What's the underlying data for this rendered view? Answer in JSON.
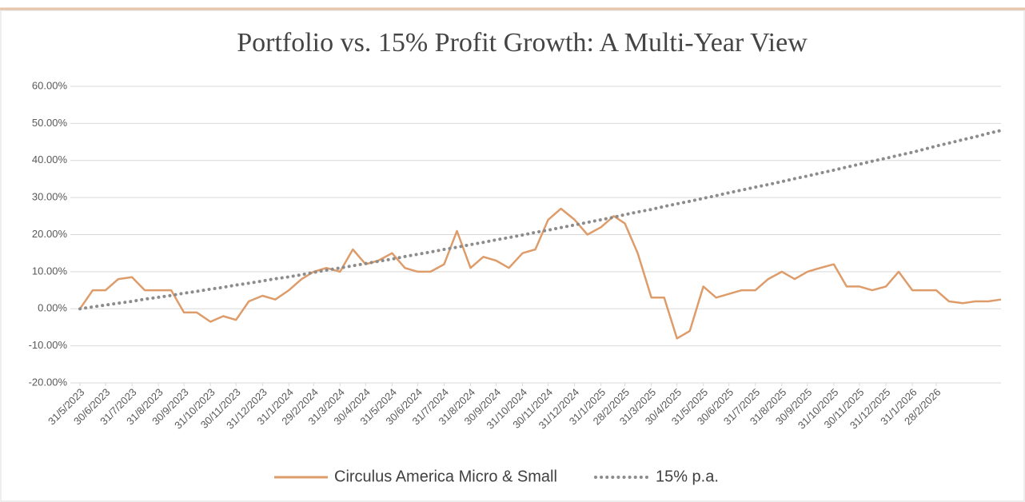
{
  "chart_data": {
    "type": "line",
    "title": "Portfolio vs. 15% Profit Growth: A Multi-Year View",
    "x": [
      "31/5/2023",
      "15/6/2023",
      "30/6/2023",
      "15/7/2023",
      "31/7/2023",
      "15/8/2023",
      "31/8/2023",
      "15/9/2023",
      "30/9/2023",
      "15/10/2023",
      "31/10/2023",
      "15/11/2023",
      "30/11/2023",
      "15/12/2023",
      "31/12/2023",
      "15/1/2024",
      "31/1/2024",
      "15/2/2024",
      "29/2/2024",
      "15/3/2024",
      "31/3/2024",
      "15/4/2024",
      "30/4/2024",
      "15/5/2024",
      "31/5/2024",
      "15/6/2024",
      "30/6/2024",
      "15/7/2024",
      "31/7/2024",
      "15/8/2024",
      "31/8/2024",
      "15/9/2024",
      "30/9/2024",
      "15/10/2024",
      "31/10/2024",
      "15/11/2024",
      "30/11/2024",
      "15/12/2024",
      "31/12/2024",
      "15/1/2025",
      "31/1/2025",
      "15/2/2025",
      "28/2/2025",
      "15/3/2025",
      "31/3/2025",
      "15/4/2025",
      "30/4/2025",
      "15/5/2025",
      "31/5/2025",
      "15/6/2025",
      "30/6/2025",
      "15/7/2025",
      "31/7/2025",
      "15/8/2025",
      "31/8/2025",
      "15/9/2025",
      "30/9/2025",
      "15/10/2025",
      "31/10/2025",
      "15/11/2025",
      "30/11/2025",
      "15/12/2025",
      "31/12/2025",
      "15/1/2026",
      "31/1/2026",
      "15/2/2026",
      "28/2/2026",
      "15/3/2026",
      "31/3/2026",
      "15/4/2026",
      "30/4/2026",
      "15/5/2026"
    ],
    "series": [
      {
        "name": "Circulus America Micro & Small",
        "color": "#dd9c6a",
        "style": "solid",
        "values": [
          0,
          5,
          5,
          8,
          8.5,
          5,
          5,
          5,
          -1,
          -1,
          -3.5,
          -2,
          -3,
          2,
          3.5,
          2.5,
          5,
          8,
          10,
          11,
          10,
          16,
          12,
          13,
          15,
          11,
          10,
          10,
          12,
          21,
          11,
          14,
          13,
          11,
          15,
          16,
          24,
          27,
          24,
          20,
          22,
          25,
          23,
          15,
          3,
          3,
          -8,
          -6,
          6,
          3,
          4,
          5,
          5,
          8,
          10,
          8,
          10,
          11,
          12,
          6,
          6,
          5,
          6,
          10,
          5,
          5,
          5,
          2,
          1.5,
          2,
          2,
          2.5
        ]
      },
      {
        "name": "15% p.a.",
        "color": "#8c8c8c",
        "style": "dotted",
        "values": [
          0,
          0.5,
          1.0,
          1.5,
          2.0,
          2.6,
          3.1,
          3.6,
          4.2,
          4.7,
          5.3,
          5.8,
          6.4,
          6.9,
          7.5,
          8.1,
          8.6,
          9.2,
          9.8,
          10.4,
          11.0,
          11.6,
          12.2,
          12.8,
          13.4,
          14.1,
          14.7,
          15.3,
          16.0,
          16.6,
          17.3,
          17.9,
          18.6,
          19.2,
          19.9,
          20.6,
          21.2,
          21.9,
          22.6,
          23.3,
          24.0,
          24.7,
          25.4,
          26.1,
          26.8,
          27.6,
          28.3,
          29.0,
          29.8,
          30.5,
          31.3,
          32.0,
          32.8,
          33.5,
          34.3,
          35.1,
          35.8,
          36.6,
          37.4,
          38.2,
          39.0,
          39.8,
          40.6,
          41.4,
          42.2,
          43.1,
          43.9,
          44.7,
          45.6,
          46.4,
          47.3,
          48.1
        ]
      }
    ],
    "xlim": [
      "31/5/2023",
      "15/5/2026"
    ],
    "xticks": [
      "31/5/2023",
      "30/6/2023",
      "31/7/2023",
      "31/8/2023",
      "30/9/2023",
      "31/10/2023",
      "30/11/2023",
      "31/12/2023",
      "31/1/2024",
      "29/2/2024",
      "31/3/2024",
      "30/4/2024",
      "31/5/2024",
      "30/6/2024",
      "31/7/2024",
      "31/8/2024",
      "30/9/2024",
      "31/10/2024",
      "30/11/2024",
      "31/12/2024",
      "31/1/2025",
      "28/2/2025",
      "31/3/2025",
      "30/4/2025",
      "31/5/2025",
      "30/6/2025",
      "31/7/2025",
      "31/8/2025",
      "30/9/2025",
      "31/10/2025",
      "30/11/2025",
      "31/12/2025",
      "31/1/2026",
      "28/2/2026"
    ],
    "ylim": [
      -20,
      60
    ],
    "yticks": [
      {
        "value": -20,
        "label": "-20.00%"
      },
      {
        "value": -10,
        "label": "-10.00%"
      },
      {
        "value": 0,
        "label": "0.00%"
      },
      {
        "value": 10,
        "label": "10.00%"
      },
      {
        "value": 20,
        "label": "20.00%"
      },
      {
        "value": 30,
        "label": "30.00%"
      },
      {
        "value": 40,
        "label": "40.00%"
      },
      {
        "value": 50,
        "label": "50.00%"
      },
      {
        "value": 60,
        "label": "60.00%"
      }
    ],
    "grid": true,
    "legend": "bottom"
  }
}
